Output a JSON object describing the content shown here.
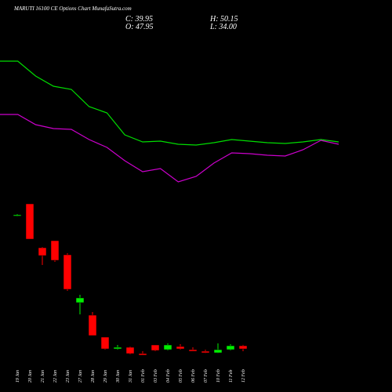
{
  "chart_data": [
    {
      "type": "candlestick",
      "title": "MARUTI 16100 CE Options Chart MunafaSutra.com",
      "ohlc_labels": [
        "C: 39.95",
        "H: 50.15",
        "O: 47.95",
        "L: 34.00"
      ],
      "categories": [
        "19 Jan",
        "20 Jan",
        "21 Jan",
        "22 Jan",
        "23 Jan",
        "27 Jan",
        "28 Jan",
        "29 Jan",
        "30 Jan",
        "31 Jan",
        "01 Feb",
        "03 Feb",
        "04 Feb",
        "05 Feb",
        "06 Feb",
        "07 Feb",
        "10 Feb",
        "11 Feb",
        "12 Feb"
      ],
      "open": [
        380,
        410,
        298,
        316,
        280,
        158,
        126,
        70,
        40,
        44,
        28,
        50,
        38,
        46,
        38,
        34,
        30,
        38,
        47.95
      ],
      "high": [
        384,
        410,
        300,
        316,
        284,
        178,
        134,
        70,
        50,
        46,
        34,
        50,
        54,
        52,
        44,
        38,
        54,
        52,
        50.15
      ],
      "low": [
        378,
        320,
        254,
        262,
        188,
        128,
        74,
        38,
        38,
        26,
        24,
        34,
        36,
        38,
        34,
        29,
        29,
        36,
        34
      ],
      "close": [
        382,
        320,
        278,
        266,
        192,
        170,
        74,
        40,
        44,
        28,
        24,
        36,
        50,
        40,
        34,
        30,
        38,
        48,
        39.95
      ],
      "up_color": "#00ee00",
      "down_color": "#ff0000",
      "ylim": [
        20,
        890
      ]
    },
    {
      "type": "line",
      "series": [
        {
          "color": "#00dd00",
          "values": [
            422,
            422,
            403,
            390,
            386,
            364,
            356,
            328,
            319,
            320,
            316,
            315,
            318,
            322,
            320,
            318,
            317,
            319,
            322,
            319
          ]
        },
        {
          "color": "#cc00cc",
          "values": [
            354,
            354,
            341,
            336,
            335,
            322,
            312,
            295,
            281,
            285,
            268,
            275,
            292,
            305,
            304,
            302,
            301,
            309,
            321,
            316
          ]
        }
      ],
      "ylim": [
        0,
        500
      ]
    }
  ]
}
